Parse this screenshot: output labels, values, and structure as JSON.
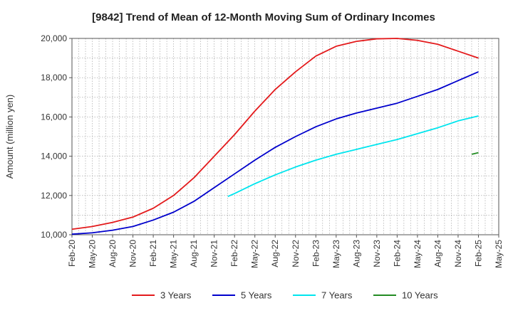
{
  "chart_data": {
    "type": "line",
    "title": "[9842]  Trend of Mean of 12-Month Moving Sum of Ordinary Incomes",
    "xlabel": "",
    "ylabel": "Amount (million yen)",
    "ylim": [
      10000,
      20000
    ],
    "yticks": [
      10000,
      12000,
      14000,
      16000,
      18000,
      20000
    ],
    "ytick_labels": [
      "10,000",
      "12,000",
      "14,000",
      "16,000",
      "18,000",
      "20,000"
    ],
    "x_tick_labels": [
      "Feb-20",
      "May-20",
      "Aug-20",
      "Nov-20",
      "Feb-21",
      "May-21",
      "Aug-21",
      "Nov-21",
      "Feb-22",
      "May-22",
      "Aug-22",
      "Nov-22",
      "Feb-23",
      "May-23",
      "Aug-23",
      "Nov-23",
      "Feb-24",
      "May-24",
      "Aug-24",
      "Nov-24",
      "Feb-25",
      "May-25"
    ],
    "x_unit": "quarter index from Feb-20",
    "grid": true,
    "legend_position": "bottom",
    "series": [
      {
        "name": "3 Years",
        "color": "#e31a1c",
        "points": [
          [
            0,
            10280
          ],
          [
            1,
            10420
          ],
          [
            2,
            10630
          ],
          [
            3,
            10900
          ],
          [
            4,
            11350
          ],
          [
            5,
            12000
          ],
          [
            6,
            12900
          ],
          [
            7,
            14000
          ],
          [
            8,
            15100
          ],
          [
            9,
            16300
          ],
          [
            10,
            17400
          ],
          [
            11,
            18300
          ],
          [
            12,
            19100
          ],
          [
            13,
            19600
          ],
          [
            14,
            19850
          ],
          [
            15,
            19980
          ],
          [
            16,
            20000
          ],
          [
            17,
            19900
          ],
          [
            18,
            19700
          ],
          [
            19,
            19350
          ],
          [
            20,
            19000
          ]
        ]
      },
      {
        "name": "5 Years",
        "color": "#0000cc",
        "points": [
          [
            0,
            10030
          ],
          [
            1,
            10100
          ],
          [
            2,
            10230
          ],
          [
            3,
            10420
          ],
          [
            4,
            10750
          ],
          [
            5,
            11150
          ],
          [
            6,
            11700
          ],
          [
            7,
            12400
          ],
          [
            8,
            13100
          ],
          [
            9,
            13800
          ],
          [
            10,
            14450
          ],
          [
            11,
            15000
          ],
          [
            12,
            15500
          ],
          [
            13,
            15900
          ],
          [
            14,
            16200
          ],
          [
            15,
            16450
          ],
          [
            16,
            16700
          ],
          [
            17,
            17050
          ],
          [
            18,
            17400
          ],
          [
            19,
            17850
          ],
          [
            20,
            18300
          ]
        ]
      },
      {
        "name": "7 Years",
        "color": "#00e5ee",
        "points": [
          [
            7.67,
            11950
          ],
          [
            8,
            12100
          ],
          [
            9,
            12600
          ],
          [
            10,
            13050
          ],
          [
            11,
            13450
          ],
          [
            12,
            13800
          ],
          [
            13,
            14100
          ],
          [
            14,
            14350
          ],
          [
            15,
            14600
          ],
          [
            16,
            14850
          ],
          [
            17,
            15150
          ],
          [
            18,
            15450
          ],
          [
            19,
            15800
          ],
          [
            20,
            16050
          ]
        ]
      },
      {
        "name": "10 Years",
        "color": "#228b22",
        "points": [
          [
            19.67,
            14100
          ],
          [
            20,
            14180
          ]
        ]
      }
    ]
  }
}
